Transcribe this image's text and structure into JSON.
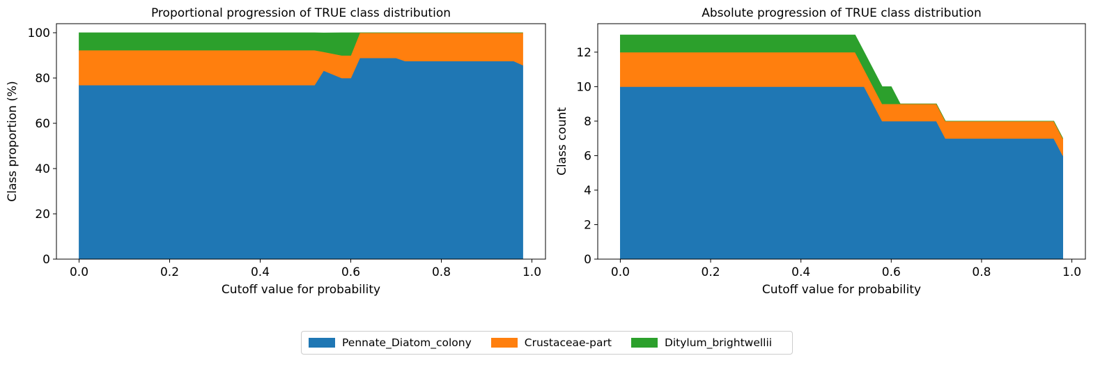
{
  "colors": {
    "series": [
      "#1f77b4",
      "#ff7f0e",
      "#2ca02c"
    ],
    "axis": "#000000",
    "background": "#ffffff"
  },
  "legend": {
    "placement": "bottom-center",
    "items": [
      "Pennate_Diatom_colony",
      "Crustaceae-part",
      "Ditylum_brightwellii"
    ]
  },
  "chart_data": [
    {
      "type": "area",
      "stacked": true,
      "title": "Proportional progression of TRUE class distribution",
      "xlabel": "Cutoff value for probability",
      "ylabel": "Class proportion (%)",
      "xlim": [
        -0.05,
        1.03
      ],
      "ylim": [
        0,
        104
      ],
      "xticks": [
        0.0,
        0.2,
        0.4,
        0.6,
        0.8,
        1.0
      ],
      "xtick_labels": [
        "0.0",
        "0.2",
        "0.4",
        "0.6",
        "0.8",
        "1.0"
      ],
      "yticks": [
        0,
        20,
        40,
        60,
        80,
        100
      ],
      "ytick_labels": [
        "0",
        "20",
        "40",
        "60",
        "80",
        "100"
      ],
      "grid": false,
      "x": [
        0.0,
        0.52,
        0.54,
        0.58,
        0.6,
        0.62,
        0.7,
        0.72,
        0.96,
        0.98
      ],
      "series": [
        {
          "name": "Pennate_Diatom_colony",
          "values": [
            76.9,
            76.9,
            83.3,
            80.0,
            80.0,
            88.9,
            88.9,
            87.5,
            87.5,
            85.7
          ]
        },
        {
          "name": "Crustaceae-part",
          "values": [
            15.4,
            15.4,
            8.3,
            10.0,
            10.0,
            11.1,
            11.1,
            12.5,
            12.5,
            14.3
          ]
        },
        {
          "name": "Ditylum_brightwellii",
          "values": [
            7.7,
            7.7,
            8.3,
            10.0,
            10.0,
            0.0,
            0.0,
            0.0,
            0.0,
            0.0
          ]
        }
      ]
    },
    {
      "type": "area",
      "stacked": true,
      "title": "Absolute progression of TRUE class distribution",
      "xlabel": "Cutoff value for probability",
      "ylabel": "Class count",
      "xlim": [
        -0.05,
        1.03
      ],
      "ylim": [
        0,
        13.65
      ],
      "xticks": [
        0.0,
        0.2,
        0.4,
        0.6,
        0.8,
        1.0
      ],
      "xtick_labels": [
        "0.0",
        "0.2",
        "0.4",
        "0.6",
        "0.8",
        "1.0"
      ],
      "yticks": [
        0,
        2,
        4,
        6,
        8,
        10,
        12
      ],
      "ytick_labels": [
        "0",
        "2",
        "4",
        "6",
        "8",
        "10",
        "12"
      ],
      "grid": false,
      "x": [
        0.0,
        0.52,
        0.54,
        0.58,
        0.6,
        0.62,
        0.7,
        0.72,
        0.96,
        0.98
      ],
      "series": [
        {
          "name": "Pennate_Diatom_colony",
          "values": [
            10,
            10,
            10,
            8,
            8,
            8,
            8,
            7,
            7,
            6
          ]
        },
        {
          "name": "Crustaceae-part",
          "values": [
            2,
            2,
            1,
            1,
            1,
            1,
            1,
            1,
            1,
            1
          ]
        },
        {
          "name": "Ditylum_brightwellii",
          "values": [
            1,
            1,
            1,
            1,
            1,
            0,
            0,
            0,
            0,
            0
          ]
        }
      ]
    }
  ]
}
